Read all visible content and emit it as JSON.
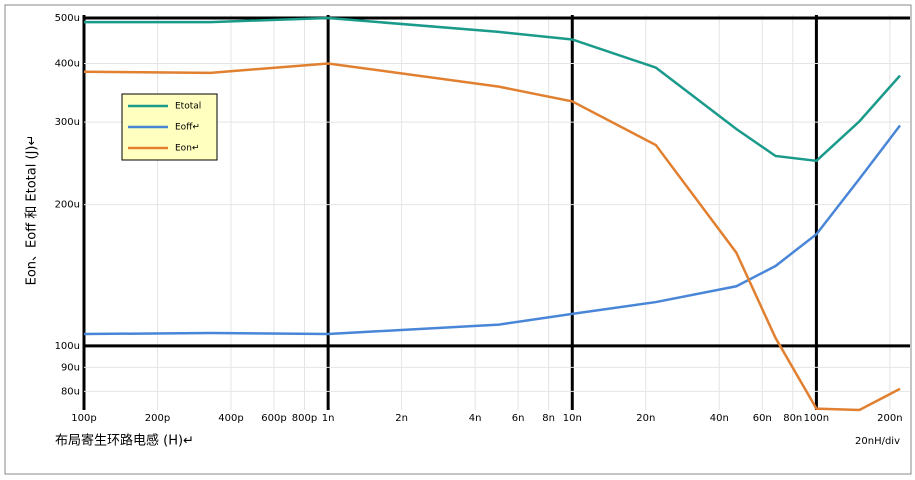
{
  "chart_data": {
    "type": "line",
    "y_label": "Eon、Eoff 和 Etotal (J)↵",
    "x_label": "布局寄生环路电感 (H)↵",
    "annotation": "20nH/div",
    "log_x": true,
    "log_y": true,
    "grid": true,
    "x": [
      1e-10,
      3.3e-10,
      1e-09,
      5e-09,
      1e-08,
      2.2e-08,
      4.7e-08,
      6.8e-08,
      1e-07,
      1.5e-07,
      2.2e-07
    ],
    "series": [
      {
        "name": "Etotal",
        "color": "#1a9a8a",
        "values": [
          0.00049,
          0.00049,
          0.0005,
          0.000467,
          0.00045,
          0.000392,
          0.00029,
          0.000254,
          0.000248,
          0.000301,
          0.000377
        ]
      },
      {
        "name": "Eoff↵",
        "color": "#4a86d8",
        "values": [
          0.000106,
          0.0001065,
          0.000106,
          0.000111,
          0.000117,
          0.000124,
          0.000134,
          0.000148,
          0.000173,
          0.000227,
          0.000295
        ]
      },
      {
        "name": "Eon↵",
        "color": "#e08030",
        "values": [
          0.000384,
          0.000382,
          0.0004,
          0.000357,
          0.000332,
          0.000268,
          0.000158,
          0.000104,
          7.35e-05,
          7.3e-05,
          8.1e-05
        ]
      }
    ],
    "xlim": [
      1e-10,
      2.2e-07
    ],
    "ylim": [
      7.3e-05,
      0.0005
    ],
    "xticks": [
      {
        "value": 1e-10,
        "label": "100p"
      },
      {
        "value": 2e-10,
        "label": "200p"
      },
      {
        "value": 4e-10,
        "label": "400p"
      },
      {
        "value": 6e-10,
        "label": "600p"
      },
      {
        "value": 8e-10,
        "label": "800p"
      },
      {
        "value": 1e-09,
        "label": "1n"
      },
      {
        "value": 2e-09,
        "label": "2n"
      },
      {
        "value": 4e-09,
        "label": "4n"
      },
      {
        "value": 6e-09,
        "label": "6n"
      },
      {
        "value": 8e-09,
        "label": "8n"
      },
      {
        "value": 1e-08,
        "label": "10n"
      },
      {
        "value": 2e-08,
        "label": "20n"
      },
      {
        "value": 4e-08,
        "label": "40n"
      },
      {
        "value": 6e-08,
        "label": "60n"
      },
      {
        "value": 8e-08,
        "label": "80n"
      },
      {
        "value": 1e-07,
        "label": "100n"
      },
      {
        "value": 2e-07,
        "label": "200n"
      }
    ],
    "yticks": [
      {
        "value": 8e-05,
        "label": "80u"
      },
      {
        "value": 9e-05,
        "label": "90u"
      },
      {
        "value": 0.0001,
        "label": "100u"
      },
      {
        "value": 0.0002,
        "label": "200u"
      },
      {
        "value": 0.0003,
        "label": "300u"
      },
      {
        "value": 0.0004,
        "label": "400u"
      },
      {
        "value": 0.0005,
        "label": "500u"
      }
    ]
  }
}
